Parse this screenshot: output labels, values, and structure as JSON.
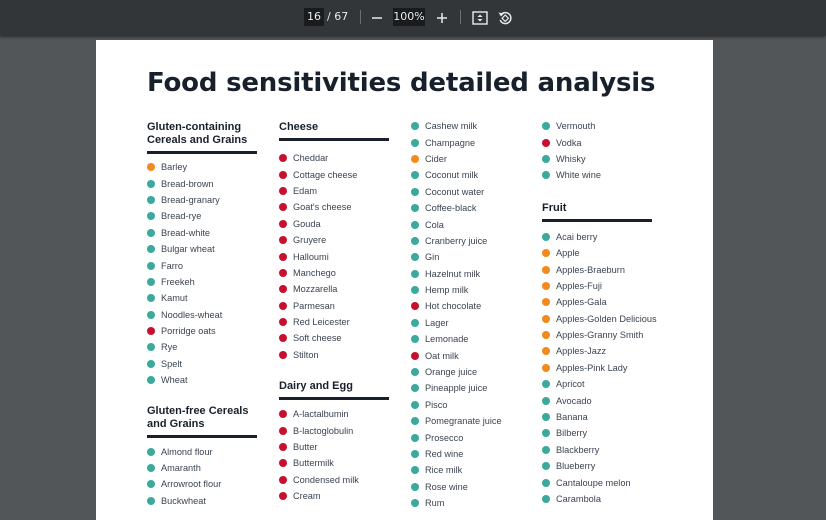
{
  "viewer": {
    "current_page": "16",
    "total_pages": "/ 67",
    "zoom": "100%",
    "icons": [
      "minus-icon",
      "plus-icon",
      "fit-page-icon",
      "rotate-icon"
    ]
  },
  "legend_colors": {
    "g": "#3ba99c",
    "r": "#c8102e",
    "o": "#f28a1e"
  },
  "document": {
    "title": "Food sensitivities detailed analysis",
    "columns": [
      {
        "sections": [
          {
            "heading": "Gluten-containing Cereals and Grains",
            "items": [
              {
                "name": "Barley",
                "level": "o"
              },
              {
                "name": "Bread-brown",
                "level": "g"
              },
              {
                "name": "Bread-granary",
                "level": "g"
              },
              {
                "name": "Bread-rye",
                "level": "g"
              },
              {
                "name": "Bread-white",
                "level": "g"
              },
              {
                "name": "Bulgar wheat",
                "level": "g"
              },
              {
                "name": "Farro",
                "level": "g"
              },
              {
                "name": "Freekeh",
                "level": "g"
              },
              {
                "name": "Kamut",
                "level": "g"
              },
              {
                "name": "Noodles-wheat",
                "level": "g"
              },
              {
                "name": "Porridge oats",
                "level": "r"
              },
              {
                "name": "Rye",
                "level": "g"
              },
              {
                "name": "Spelt",
                "level": "g"
              },
              {
                "name": "Wheat",
                "level": "g"
              }
            ]
          },
          {
            "heading": "Gluten-free Cereals and Grains",
            "items": [
              {
                "name": "Almond flour",
                "level": "g"
              },
              {
                "name": "Amaranth",
                "level": "g"
              },
              {
                "name": "Arrowroot flour",
                "level": "g"
              },
              {
                "name": "Buckwheat",
                "level": "g"
              }
            ]
          }
        ]
      },
      {
        "sections": [
          {
            "heading": "Cheese",
            "items": [
              {
                "name": "Cheddar",
                "level": "r"
              },
              {
                "name": "Cottage cheese",
                "level": "r"
              },
              {
                "name": "Edam",
                "level": "r"
              },
              {
                "name": "Goat's cheese",
                "level": "r"
              },
              {
                "name": "Gouda",
                "level": "r"
              },
              {
                "name": "Gruyere",
                "level": "r"
              },
              {
                "name": "Halloumi",
                "level": "r"
              },
              {
                "name": "Manchego",
                "level": "r"
              },
              {
                "name": "Mozzarella",
                "level": "r"
              },
              {
                "name": "Parmesan",
                "level": "r"
              },
              {
                "name": "Red Leicester",
                "level": "r"
              },
              {
                "name": "Soft cheese",
                "level": "r"
              },
              {
                "name": "Stilton",
                "level": "r"
              }
            ]
          },
          {
            "heading": "Dairy and Egg",
            "items": [
              {
                "name": "A-lactalbumin",
                "level": "r"
              },
              {
                "name": "B-lactoglobulin",
                "level": "r"
              },
              {
                "name": "Butter",
                "level": "r"
              },
              {
                "name": "Buttermilk",
                "level": "r"
              },
              {
                "name": "Condensed milk",
                "level": "r"
              },
              {
                "name": "Cream",
                "level": "r"
              }
            ]
          }
        ]
      },
      {
        "sections": [
          {
            "heading": "",
            "items": [
              {
                "name": "Cashew milk",
                "level": "g"
              },
              {
                "name": "Champagne",
                "level": "g"
              },
              {
                "name": "Cider",
                "level": "o"
              },
              {
                "name": "Coconut milk",
                "level": "g"
              },
              {
                "name": "Coconut water",
                "level": "g"
              },
              {
                "name": "Coffee-black",
                "level": "g"
              },
              {
                "name": "Cola",
                "level": "g"
              },
              {
                "name": "Cranberry juice",
                "level": "g"
              },
              {
                "name": "Gin",
                "level": "g"
              },
              {
                "name": "Hazelnut milk",
                "level": "g"
              },
              {
                "name": "Hemp milk",
                "level": "g"
              },
              {
                "name": "Hot chocolate",
                "level": "r"
              },
              {
                "name": "Lager",
                "level": "g"
              },
              {
                "name": "Lemonade",
                "level": "g"
              },
              {
                "name": "Oat milk",
                "level": "r"
              },
              {
                "name": "Orange juice",
                "level": "g"
              },
              {
                "name": "Pineapple juice",
                "level": "g"
              },
              {
                "name": "Pisco",
                "level": "g"
              },
              {
                "name": "Pomegranate juice",
                "level": "g"
              },
              {
                "name": "Prosecco",
                "level": "g"
              },
              {
                "name": "Red wine",
                "level": "g"
              },
              {
                "name": "Rice milk",
                "level": "g"
              },
              {
                "name": "Rose wine",
                "level": "g"
              },
              {
                "name": "Rum",
                "level": "g"
              }
            ]
          }
        ]
      },
      {
        "sections": [
          {
            "heading": "",
            "items": [
              {
                "name": "Vermouth",
                "level": "g"
              },
              {
                "name": "Vodka",
                "level": "r"
              },
              {
                "name": "Whisky",
                "level": "g"
              },
              {
                "name": "White wine",
                "level": "g"
              }
            ]
          },
          {
            "heading": "Fruit",
            "items": [
              {
                "name": "Acai berry",
                "level": "g"
              },
              {
                "name": "Apple",
                "level": "o"
              },
              {
                "name": "Apples-Braeburn",
                "level": "o"
              },
              {
                "name": "Apples-Fuji",
                "level": "o"
              },
              {
                "name": "Apples-Gala",
                "level": "o"
              },
              {
                "name": "Apples-Golden Delicious",
                "level": "o"
              },
              {
                "name": "Apples-Granny Smith",
                "level": "o"
              },
              {
                "name": "Apples-Jazz",
                "level": "o"
              },
              {
                "name": "Apples-Pink Lady",
                "level": "o"
              },
              {
                "name": "Apricot",
                "level": "g"
              },
              {
                "name": "Avocado",
                "level": "g"
              },
              {
                "name": "Banana",
                "level": "g"
              },
              {
                "name": "Bilberry",
                "level": "g"
              },
              {
                "name": "Blackberry",
                "level": "g"
              },
              {
                "name": "Blueberry",
                "level": "g"
              },
              {
                "name": "Cantaloupe melon",
                "level": "g"
              },
              {
                "name": "Carambola",
                "level": "g"
              }
            ]
          }
        ]
      }
    ]
  }
}
